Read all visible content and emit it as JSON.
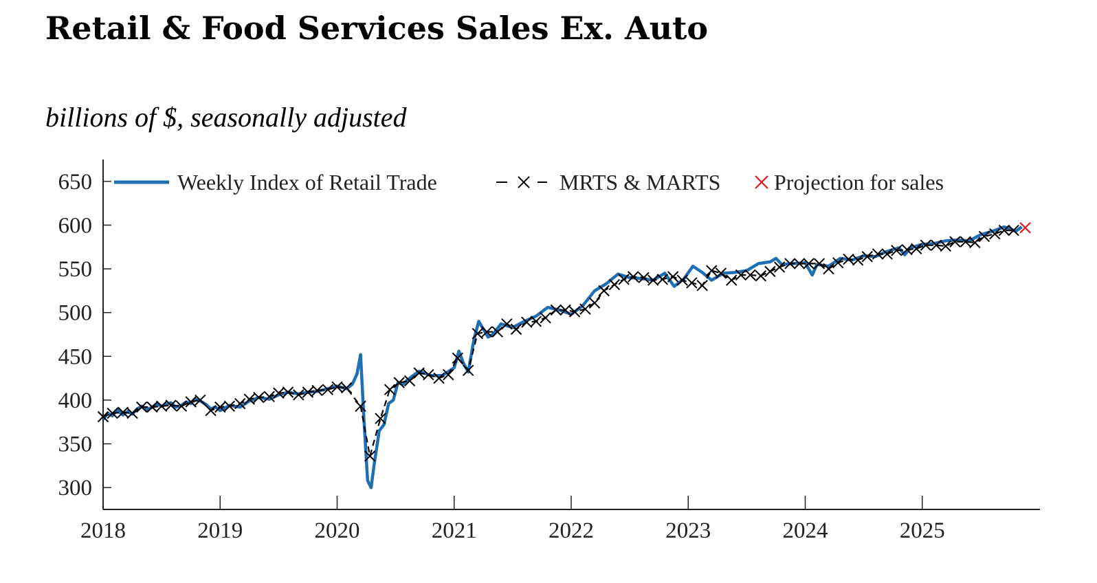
{
  "title": "Retail & Food Services Sales Ex. Auto",
  "subtitle": "billions of $, seasonally adjusted",
  "colors": {
    "weekly": "#1f6fb5",
    "monthly": "#000000",
    "projection": "#e31a1c",
    "axis": "#222222"
  },
  "chart_data": {
    "type": "line",
    "title": "Retail & Food Services Sales Ex. Auto",
    "subtitle": "billions of $, seasonally adjusted",
    "xlabel": "",
    "ylabel": "",
    "xlim": [
      2018.0,
      2026.0
    ],
    "ylim": [
      275,
      675
    ],
    "x_ticks": [
      2018,
      2019,
      2020,
      2021,
      2022,
      2023,
      2024,
      2025
    ],
    "x_tick_labels": [
      "2018",
      "2019",
      "2020",
      "2021",
      "2022",
      "2023",
      "2024",
      "2025"
    ],
    "y_ticks": [
      300,
      350,
      400,
      450,
      500,
      550,
      600,
      650
    ],
    "y_tick_labels": [
      "300",
      "350",
      "400",
      "450",
      "500",
      "550",
      "600",
      "650"
    ],
    "grid": false,
    "legend_position": "top",
    "series": [
      {
        "name": "Weekly Index of Retail Trade",
        "style": "solid",
        "x": [
          2018.0,
          2018.04,
          2018.08,
          2018.12,
          2018.17,
          2018.21,
          2018.25,
          2018.29,
          2018.33,
          2018.38,
          2018.42,
          2018.46,
          2018.5,
          2018.54,
          2018.58,
          2018.62,
          2018.67,
          2018.71,
          2018.75,
          2018.79,
          2018.83,
          2018.88,
          2018.92,
          2018.96,
          2019.0,
          2019.08,
          2019.17,
          2019.25,
          2019.33,
          2019.42,
          2019.5,
          2019.58,
          2019.67,
          2019.75,
          2019.83,
          2019.92,
          2020.0,
          2020.08,
          2020.13,
          2020.17,
          2020.2,
          2020.23,
          2020.26,
          2020.29,
          2020.32,
          2020.36,
          2020.4,
          2020.44,
          2020.48,
          2020.52,
          2020.56,
          2020.6,
          2020.7,
          2020.8,
          2020.9,
          2021.0,
          2021.04,
          2021.08,
          2021.12,
          2021.17,
          2021.21,
          2021.25,
          2021.29,
          2021.33,
          2021.4,
          2021.5,
          2021.6,
          2021.7,
          2021.8,
          2021.9,
          2022.0,
          2022.1,
          2022.2,
          2022.3,
          2022.4,
          2022.5,
          2022.6,
          2022.7,
          2022.8,
          2022.88,
          2022.96,
          2023.04,
          2023.12,
          2023.2,
          2023.3,
          2023.4,
          2023.5,
          2023.6,
          2023.7,
          2023.75,
          2023.8,
          2023.9,
          2024.0,
          2024.06,
          2024.1,
          2024.2,
          2024.3,
          2024.4,
          2024.5,
          2024.6,
          2024.7,
          2024.8,
          2024.85,
          2024.9,
          2025.0,
          2025.1,
          2025.2,
          2025.3,
          2025.4,
          2025.5,
          2025.6,
          2025.7,
          2025.8,
          2025.85
        ],
        "y": [
          378,
          385,
          382,
          389,
          383,
          387,
          384,
          390,
          393,
          389,
          392,
          396,
          393,
          395,
          397,
          392,
          394,
          398,
          396,
          401,
          399,
          395,
          390,
          392,
          388,
          394,
          392,
          399,
          403,
          401,
          406,
          409,
          407,
          409,
          410,
          413,
          416,
          413,
          418,
          430,
          452,
          375,
          308,
          300,
          330,
          365,
          372,
          396,
          400,
          420,
          418,
          423,
          433,
          428,
          428,
          437,
          456,
          442,
          432,
          470,
          490,
          481,
          472,
          475,
          487,
          483,
          490,
          496,
          506,
          503,
          498,
          508,
          525,
          533,
          544,
          540,
          539,
          537,
          545,
          530,
          538,
          553,
          546,
          537,
          545,
          546,
          548,
          556,
          558,
          562,
          555,
          556,
          557,
          543,
          555,
          553,
          562,
          560,
          565,
          564,
          570,
          574,
          566,
          574,
          578,
          579,
          582,
          583,
          582,
          589,
          593,
          598,
          593,
          598
        ]
      },
      {
        "name": "MRTS & MARTS",
        "style": "dashed-x",
        "x": [
          2018.0,
          2018.08,
          2018.17,
          2018.25,
          2018.33,
          2018.42,
          2018.5,
          2018.58,
          2018.67,
          2018.75,
          2018.83,
          2018.92,
          2019.0,
          2019.08,
          2019.17,
          2019.25,
          2019.33,
          2019.42,
          2019.5,
          2019.58,
          2019.67,
          2019.75,
          2019.83,
          2019.92,
          2020.0,
          2020.08,
          2020.2,
          2020.28,
          2020.37,
          2020.45,
          2020.53,
          2020.62,
          2020.7,
          2020.78,
          2020.87,
          2020.95,
          2021.03,
          2021.12,
          2021.2,
          2021.28,
          2021.37,
          2021.45,
          2021.53,
          2021.62,
          2021.7,
          2021.78,
          2021.87,
          2021.95,
          2022.03,
          2022.12,
          2022.2,
          2022.28,
          2022.37,
          2022.45,
          2022.53,
          2022.62,
          2022.7,
          2022.78,
          2022.87,
          2022.95,
          2023.03,
          2023.12,
          2023.2,
          2023.28,
          2023.37,
          2023.45,
          2023.53,
          2023.62,
          2023.7,
          2023.78,
          2023.87,
          2023.95,
          2024.03,
          2024.12,
          2024.2,
          2024.28,
          2024.37,
          2024.45,
          2024.53,
          2024.62,
          2024.7,
          2024.78,
          2024.87,
          2024.95,
          2025.03,
          2025.12,
          2025.2,
          2025.28,
          2025.37,
          2025.45,
          2025.53,
          2025.62,
          2025.7,
          2025.78
        ],
        "y": [
          381,
          385,
          386,
          385,
          392,
          392,
          393,
          394,
          393,
          398,
          400,
          388,
          392,
          393,
          396,
          401,
          403,
          404,
          408,
          409,
          406,
          409,
          411,
          412,
          415,
          414,
          393,
          336,
          379,
          412,
          420,
          422,
          431,
          429,
          425,
          429,
          448,
          434,
          476,
          478,
          478,
          487,
          481,
          489,
          490,
          494,
          503,
          503,
          501,
          504,
          511,
          525,
          532,
          538,
          541,
          540,
          537,
          538,
          541,
          537,
          534,
          531,
          548,
          545,
          537,
          543,
          543,
          542,
          547,
          552,
          556,
          556,
          556,
          556,
          550,
          557,
          561,
          560,
          564,
          567,
          567,
          571,
          572,
          573,
          577,
          577,
          576,
          581,
          581,
          580,
          587,
          590,
          594,
          594
        ]
      },
      {
        "name": "Projection for sales",
        "style": "marker-x",
        "x": [
          2025.88
        ],
        "y": [
          597
        ]
      }
    ]
  }
}
